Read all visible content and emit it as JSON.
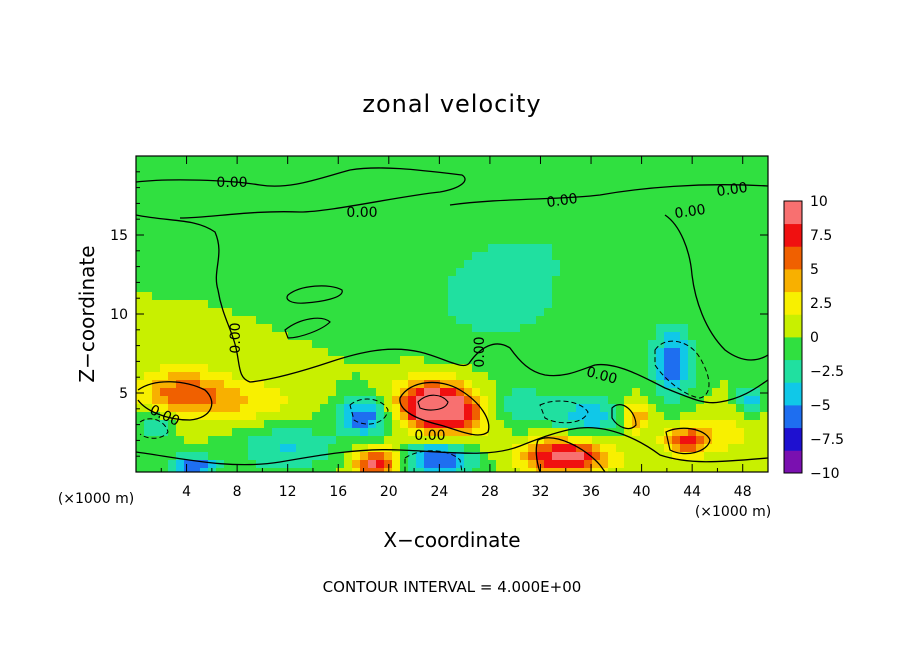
{
  "chart_data": {
    "type": "heatmap",
    "title": "zonal velocity",
    "xlabel": "X−coordinate",
    "ylabel": "Z−coordinate",
    "x_unit_left": "(×1000 m)",
    "x_unit_right": "(×1000 m)",
    "xlim": [
      0,
      50
    ],
    "ylim": [
      0,
      20
    ],
    "x_ticks": [
      4,
      8,
      12,
      16,
      20,
      24,
      28,
      32,
      36,
      40,
      44,
      48
    ],
    "x_tick_labels": [
      "4",
      "8",
      "12",
      "16",
      "20",
      "24",
      "28",
      "32",
      "36",
      "40",
      "44",
      "48"
    ],
    "y_ticks": [
      5,
      10,
      15
    ],
    "y_tick_labels": [
      "5",
      "10",
      "15"
    ],
    "colorbar": {
      "range": [
        -10,
        10
      ],
      "ticks": [
        10,
        7.5,
        5,
        2.5,
        0,
        -2.5,
        -5,
        -7.5,
        -10
      ],
      "tick_labels": [
        "10",
        "7.5",
        "5",
        "2.5",
        "0",
        "−2.5",
        "−5",
        "−7.5",
        "−10"
      ],
      "colors": [
        "#7a10b0",
        "#1e10d0",
        "#1e6ef0",
        "#10c8e8",
        "#20e0a0",
        "#30e040",
        "#c8f000",
        "#f8f000",
        "#f8b000",
        "#f06000",
        "#f01010",
        "#f87070"
      ]
    },
    "contour_interval_text": "CONTOUR INTERVAL = 4.000E+00",
    "contour_labels": [
      "0.00",
      "0.00",
      "0.00",
      "0.00",
      "0.00",
      "0.00",
      "0.00",
      "0.00",
      "0.00",
      "0.00"
    ],
    "background_value": 0,
    "features": [
      {
        "x": 3.5,
        "z": 5.0,
        "value": 5.0,
        "rx": 3.5,
        "rz": 1.6
      },
      {
        "x": 1.5,
        "z": 3.0,
        "value": -4.0,
        "rx": 1.5,
        "rz": 1.0
      },
      {
        "x": 18.0,
        "z": 3.5,
        "value": -6.5,
        "rx": 2.0,
        "rz": 1.2
      },
      {
        "x": 23.5,
        "z": 4.3,
        "value": 9.5,
        "rx": 3.0,
        "rz": 1.5
      },
      {
        "x": 25.5,
        "z": 3.5,
        "value": 5.0,
        "rx": 3.5,
        "rz": 1.6
      },
      {
        "x": 19.0,
        "z": 0.5,
        "value": 9.0,
        "rx": 1.8,
        "rz": 1.0
      },
      {
        "x": 24.0,
        "z": 0.8,
        "value": -7.0,
        "rx": 2.8,
        "rz": 1.2
      },
      {
        "x": 34.0,
        "z": 1.0,
        "value": 9.5,
        "rx": 3.5,
        "rz": 1.2
      },
      {
        "x": 36.0,
        "z": 3.5,
        "value": -4.5,
        "rx": 2.8,
        "rz": 1.4
      },
      {
        "x": 39.5,
        "z": 3.5,
        "value": 5.5,
        "rx": 1.2,
        "rz": 1.0
      },
      {
        "x": 43.5,
        "z": 2.0,
        "value": 6.5,
        "rx": 1.8,
        "rz": 0.9
      },
      {
        "x": 42.5,
        "z": 7.0,
        "value": -6.5,
        "rx": 1.6,
        "rz": 2.2
      },
      {
        "x": 48.5,
        "z": 4.5,
        "value": -5.0,
        "rx": 1.0,
        "rz": 0.8
      },
      {
        "x": 4.5,
        "z": 0.3,
        "value": -7.0,
        "rx": 1.8,
        "rz": 0.7
      },
      {
        "x": 12.0,
        "z": 1.5,
        "value": -3.5,
        "rx": 4.0,
        "rz": 1.5
      },
      {
        "x": 30.0,
        "z": 4.0,
        "value": -3.5,
        "rx": 3.0,
        "rz": 1.4
      },
      {
        "x": 28.5,
        "z": 11.0,
        "value": -2.5,
        "rx": 6.0,
        "rz": 3.5
      },
      {
        "x": 36.0,
        "z": 15.0,
        "value": -1.2,
        "rx": 10.0,
        "rz": 3.0
      },
      {
        "x": 8.0,
        "z": 4.5,
        "value": 3.0,
        "rx": 5.0,
        "rz": 1.5
      },
      {
        "x": 46.5,
        "z": 2.5,
        "value": 2.5,
        "rx": 2.5,
        "rz": 1.5
      }
    ]
  }
}
